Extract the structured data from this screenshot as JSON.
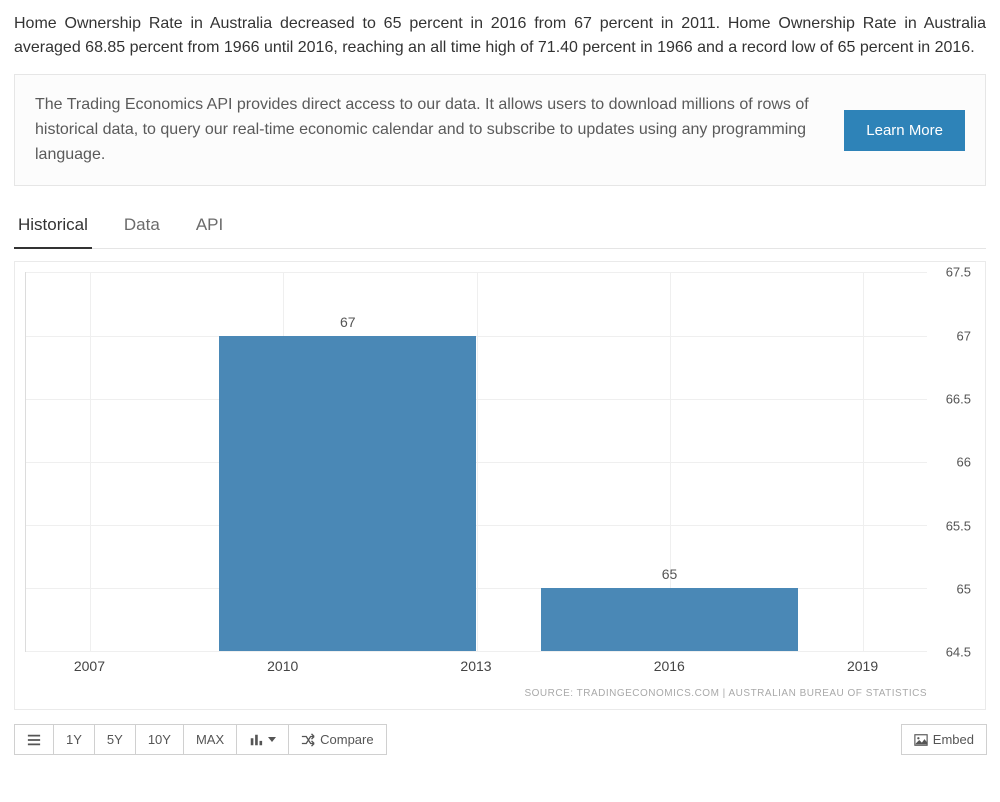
{
  "intro": "Home Ownership Rate in Australia decreased to 65 percent in 2016 from 67 percent in 2011. Home Ownership Rate in Australia averaged 68.85 percent from 1966 until 2016, reaching an all time high of 71.40 percent in 1966 and a record low of 65 percent in 2016.",
  "promo": {
    "text": "The Trading Economics API provides direct access to our data. It allows users to download millions of rows of historical data, to query our real-time economic calendar and to subscribe to updates using any programming language.",
    "button": "Learn More",
    "button_bg": "#2e83b8"
  },
  "tabs": [
    "Historical",
    "Data",
    "API"
  ],
  "active_tab": 0,
  "chart": {
    "type": "bar",
    "bar_color": "#4a88b6",
    "background_color": "#ffffff",
    "grid_color": "#efefef",
    "axis_color": "#dcdcdc",
    "ylim": [
      64.5,
      67.5
    ],
    "ytick_step": 0.5,
    "x_ticks": [
      2007,
      2010,
      2013,
      2016,
      2019
    ],
    "x_range": [
      2006,
      2020
    ],
    "bars": [
      {
        "x_start": 2009,
        "x_end": 2013,
        "value": 67,
        "label": "67"
      },
      {
        "x_start": 2014,
        "x_end": 2018,
        "value": 65,
        "label": "65"
      }
    ],
    "bar_label_fontsize": 14,
    "tick_fontsize": 13,
    "source": "SOURCE: TRADINGECONOMICS.COM | AUSTRALIAN BUREAU OF STATISTICS"
  },
  "toolbar": {
    "ranges": [
      "1Y",
      "5Y",
      "10Y",
      "MAX"
    ],
    "compare": "Compare",
    "embed": "Embed"
  }
}
